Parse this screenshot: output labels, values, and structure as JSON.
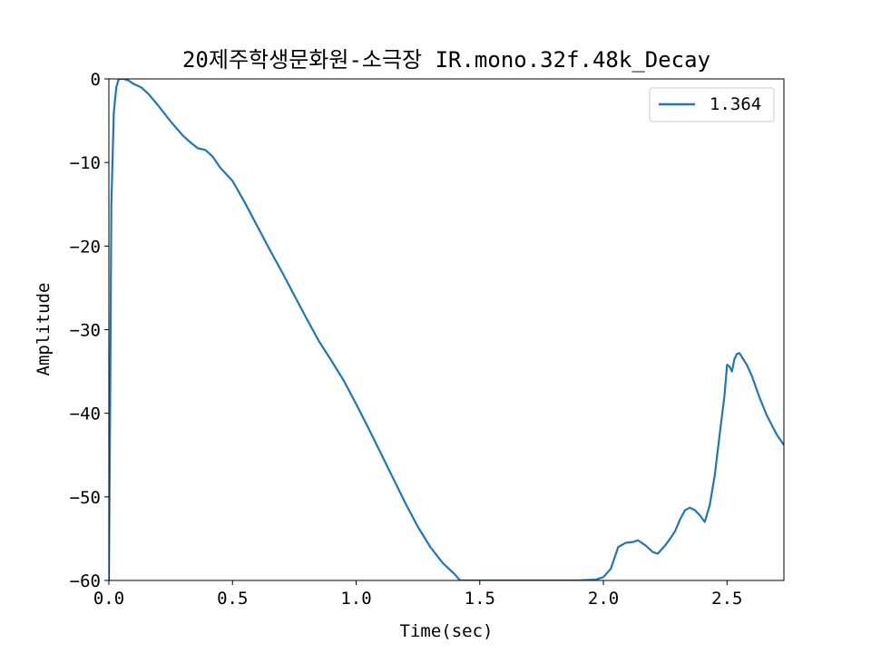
{
  "chart_data": {
    "type": "line",
    "title": "20제주학생문화원-소극장  IR.mono.32f.48k_Decay",
    "xlabel": "Time(sec)",
    "ylabel": "Amplitude",
    "xlim": [
      0,
      2.73
    ],
    "ylim": [
      -60,
      0
    ],
    "xticks": [
      0.0,
      0.5,
      1.0,
      1.5,
      2.0,
      2.5
    ],
    "xtick_labels": [
      "0.0",
      "0.5",
      "1.0",
      "1.5",
      "2.0",
      "2.5"
    ],
    "yticks": [
      0,
      -10,
      -20,
      -30,
      -40,
      -50,
      -60
    ],
    "ytick_labels": [
      "0",
      "−10",
      "−20",
      "−30",
      "−40",
      "−50",
      "−60"
    ],
    "grid": false,
    "legend_position": "top-right",
    "series": [
      {
        "name": "1.364",
        "color": "#1f77b4",
        "points": [
          [
            0.0,
            -60
          ],
          [
            0.005,
            -40
          ],
          [
            0.01,
            -15
          ],
          [
            0.02,
            -4
          ],
          [
            0.03,
            -1
          ],
          [
            0.04,
            0
          ],
          [
            0.06,
            0
          ],
          [
            0.08,
            -0.2
          ],
          [
            0.1,
            -0.6
          ],
          [
            0.13,
            -1.0
          ],
          [
            0.16,
            -1.8
          ],
          [
            0.2,
            -3.2
          ],
          [
            0.25,
            -5.1
          ],
          [
            0.3,
            -6.8
          ],
          [
            0.33,
            -7.6
          ],
          [
            0.36,
            -8.3
          ],
          [
            0.39,
            -8.5
          ],
          [
            0.42,
            -9.3
          ],
          [
            0.45,
            -10.6
          ],
          [
            0.5,
            -12.2
          ],
          [
            0.55,
            -14.8
          ],
          [
            0.6,
            -17.6
          ],
          [
            0.65,
            -20.4
          ],
          [
            0.7,
            -23.1
          ],
          [
            0.75,
            -25.9
          ],
          [
            0.8,
            -28.7
          ],
          [
            0.85,
            -31.4
          ],
          [
            0.9,
            -33.7
          ],
          [
            0.95,
            -36.1
          ],
          [
            1.0,
            -38.9
          ],
          [
            1.05,
            -41.8
          ],
          [
            1.1,
            -44.8
          ],
          [
            1.15,
            -47.8
          ],
          [
            1.2,
            -50.8
          ],
          [
            1.25,
            -53.6
          ],
          [
            1.3,
            -56.0
          ],
          [
            1.35,
            -57.9
          ],
          [
            1.4,
            -59.3
          ],
          [
            1.42,
            -60
          ],
          [
            1.9,
            -60
          ],
          [
            1.97,
            -59.9
          ],
          [
            2.0,
            -59.6
          ],
          [
            2.03,
            -58.6
          ],
          [
            2.06,
            -56.0
          ],
          [
            2.09,
            -55.5
          ],
          [
            2.12,
            -55.4
          ],
          [
            2.14,
            -55.2
          ],
          [
            2.17,
            -55.8
          ],
          [
            2.2,
            -56.6
          ],
          [
            2.22,
            -56.8
          ],
          [
            2.25,
            -55.8
          ],
          [
            2.27,
            -55.0
          ],
          [
            2.29,
            -54.1
          ],
          [
            2.31,
            -52.7
          ],
          [
            2.33,
            -51.6
          ],
          [
            2.35,
            -51.3
          ],
          [
            2.37,
            -51.6
          ],
          [
            2.39,
            -52.2
          ],
          [
            2.41,
            -53.0
          ],
          [
            2.43,
            -51.0
          ],
          [
            2.45,
            -47.5
          ],
          [
            2.47,
            -42.6
          ],
          [
            2.49,
            -37.8
          ],
          [
            2.5,
            -34.2
          ],
          [
            2.51,
            -34.4
          ],
          [
            2.52,
            -35.0
          ],
          [
            2.53,
            -33.5
          ],
          [
            2.54,
            -32.9
          ],
          [
            2.55,
            -32.8
          ],
          [
            2.58,
            -34.2
          ],
          [
            2.6,
            -35.5
          ],
          [
            2.63,
            -38.0
          ],
          [
            2.66,
            -40.2
          ],
          [
            2.7,
            -42.5
          ],
          [
            2.73,
            -43.8
          ]
        ]
      }
    ]
  }
}
